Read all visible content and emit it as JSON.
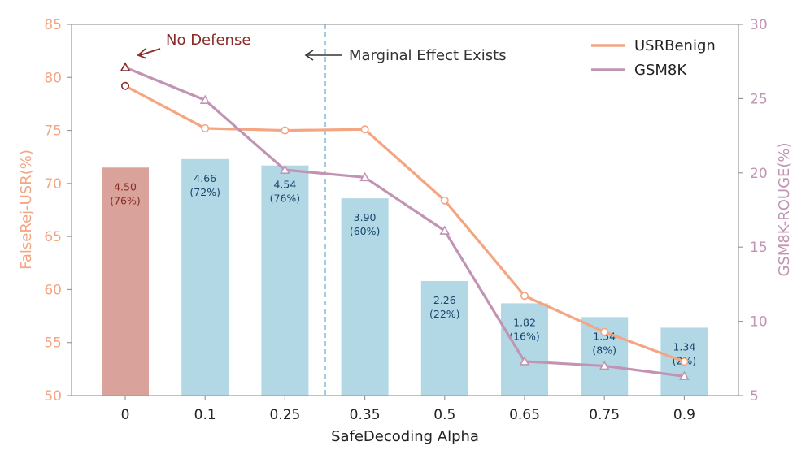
{
  "chart_data": {
    "type": "bar",
    "xlabel": "SafeDecoding Alpha",
    "ylabel_left": "FalseRej-USR(%)",
    "ylabel_right": "GSM8K-ROUGE(%)",
    "categories": [
      "0",
      "0.1",
      "0.25",
      "0.35",
      "0.5",
      "0.65",
      "0.75",
      "0.9"
    ],
    "ylim_left": [
      50,
      85
    ],
    "yticks_left": [
      "50",
      "55",
      "60",
      "65",
      "70",
      "75",
      "80",
      "85"
    ],
    "ylim_right": [
      5,
      30
    ],
    "yticks_right": [
      "5",
      "10",
      "15",
      "20",
      "25",
      "30"
    ],
    "bars": {
      "axis": "left",
      "values": [
        71.5,
        72.3,
        71.7,
        68.6,
        60.8,
        58.7,
        57.4,
        56.4
      ],
      "labels": [
        [
          "4.50",
          "(76%)"
        ],
        [
          "4.66",
          "(72%)"
        ],
        [
          "4.54",
          "(76%)"
        ],
        [
          "3.90",
          "(60%)"
        ],
        [
          "2.26",
          "(22%)"
        ],
        [
          "1.82",
          "(16%)"
        ],
        [
          "1.54",
          "(8%)"
        ],
        [
          "1.34",
          "(2%)"
        ]
      ],
      "colors": [
        "#d9a39b",
        "#b3d8e5",
        "#b3d8e5",
        "#b3d8e5",
        "#b3d8e5",
        "#b3d8e5",
        "#b3d8e5",
        "#b3d8e5"
      ],
      "label_colors": [
        "#8b2a26",
        "#17456e",
        "#17456e",
        "#17456e",
        "#17456e",
        "#17456e",
        "#17456e",
        "#17456e"
      ]
    },
    "series": [
      {
        "name": "USRBenign",
        "axis": "left",
        "marker": "circle",
        "color": "#f4a582",
        "values": [
          79.2,
          75.2,
          75.0,
          75.1,
          68.4,
          59.4,
          56.0,
          53.2
        ]
      },
      {
        "name": "GSM8K",
        "axis": "right",
        "marker": "triangle",
        "color": "#c194b4",
        "values": [
          27.1,
          24.9,
          20.2,
          19.7,
          16.1,
          7.3,
          7.0,
          6.3
        ]
      }
    ],
    "first_marker_color": "#8b2a26",
    "annotations": [
      {
        "text": "No Defense",
        "color": "#8b2a26"
      },
      {
        "text": "Marginal Effect Exists",
        "color": "#333333"
      }
    ],
    "legend_position": "top-right"
  }
}
